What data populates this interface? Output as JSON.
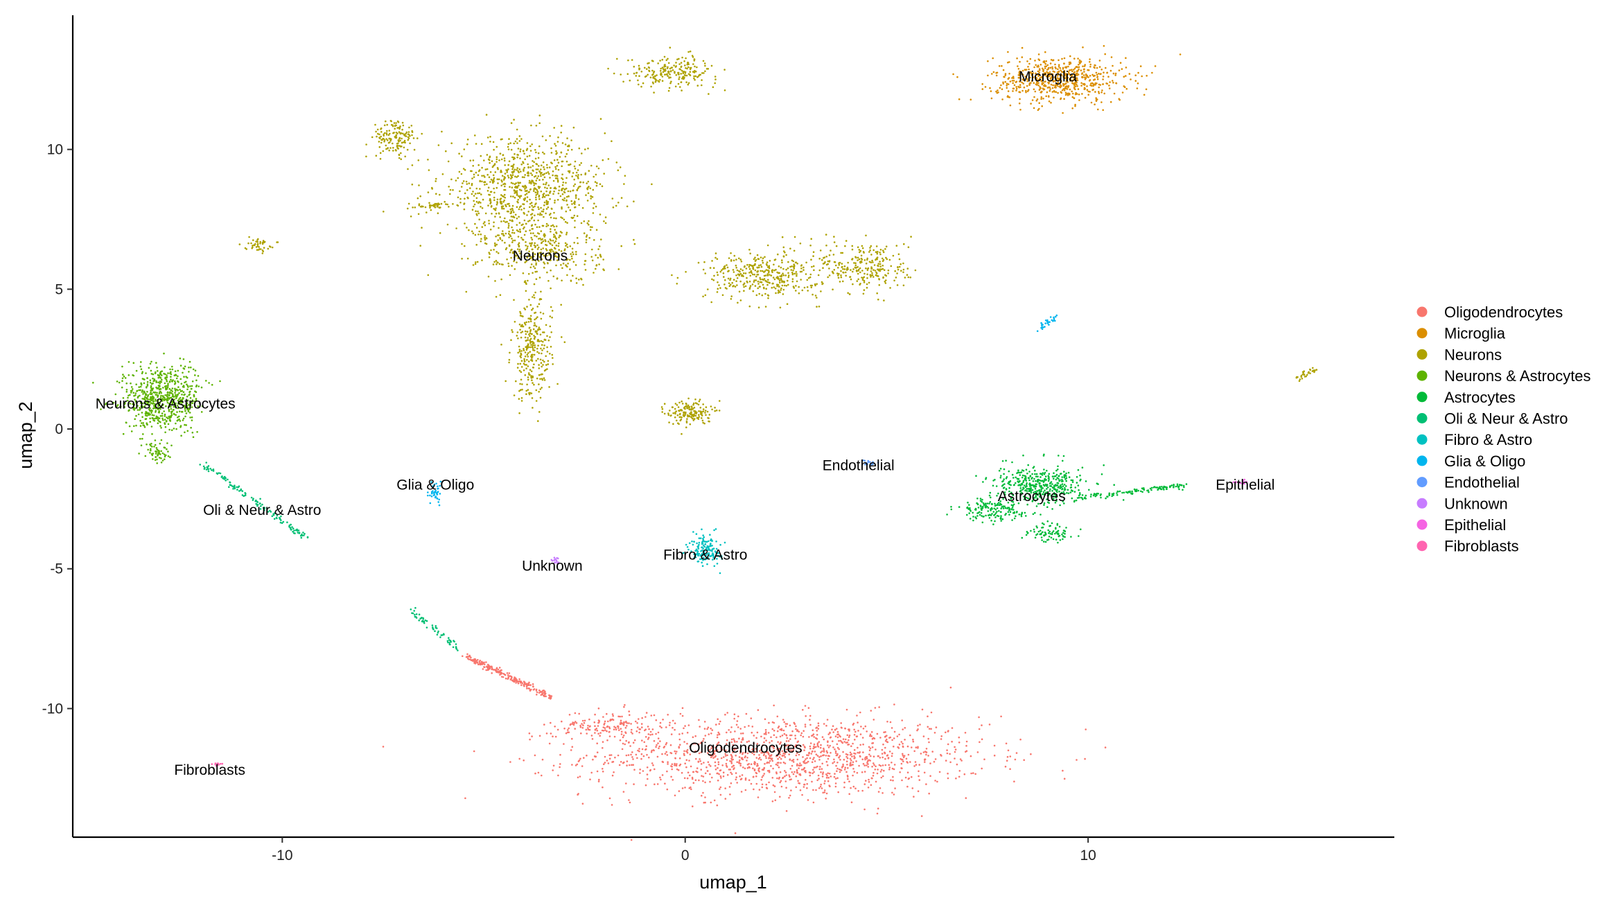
{
  "chart_data": {
    "type": "scatter",
    "xlabel": "umap_1",
    "ylabel": "umap_2",
    "xlim": [
      -15.2,
      17.6
    ],
    "ylim": [
      -14.6,
      14.8
    ],
    "xticks": [
      -10,
      0,
      10
    ],
    "yticks": [
      -10,
      -5,
      0,
      5,
      10
    ],
    "grid": false,
    "legend_position": "right",
    "series": [
      {
        "name": "Oligodendrocytes",
        "color": "#F8766D",
        "clusters": [
          {
            "kind": "blob",
            "cx": 2.5,
            "cy": -11.7,
            "rx": 4.5,
            "ry": 1.3,
            "n": 1400
          },
          {
            "kind": "blob",
            "cx": -1.9,
            "cy": -10.6,
            "rx": 1.2,
            "ry": 0.5,
            "n": 150
          },
          {
            "kind": "line",
            "x0": -5.5,
            "y0": -8.1,
            "x1": -3.3,
            "y1": -9.6,
            "n": 220
          }
        ],
        "label": {
          "text": "Oligodendrocytes",
          "x": 1.5,
          "y": -11.4
        }
      },
      {
        "name": "Microglia",
        "color": "#DB8E00",
        "clusters": [
          {
            "kind": "blob",
            "cx": 9.3,
            "cy": 12.5,
            "rx": 1.5,
            "ry": 0.75,
            "n": 650
          }
        ],
        "label": {
          "text": "Microglia",
          "x": 9.0,
          "y": 12.6
        }
      },
      {
        "name": "Neurons",
        "color": "#AEA200",
        "clusters": [
          {
            "kind": "blob",
            "cx": -4.0,
            "cy": 8.6,
            "rx": 1.9,
            "ry": 1.6,
            "n": 900
          },
          {
            "kind": "blob",
            "cx": -3.6,
            "cy": 6.4,
            "rx": 1.4,
            "ry": 1.1,
            "n": 350
          },
          {
            "kind": "blob",
            "cx": -3.8,
            "cy": 2.8,
            "rx": 0.45,
            "ry": 1.6,
            "n": 300
          },
          {
            "kind": "blob",
            "cx": -7.2,
            "cy": 10.4,
            "rx": 0.5,
            "ry": 0.6,
            "n": 150
          },
          {
            "kind": "blob",
            "cx": -0.3,
            "cy": 12.8,
            "rx": 1.0,
            "ry": 0.5,
            "n": 220
          },
          {
            "kind": "blob",
            "cx": 1.9,
            "cy": 5.5,
            "rx": 1.3,
            "ry": 0.75,
            "n": 380
          },
          {
            "kind": "blob",
            "cx": 4.5,
            "cy": 5.8,
            "rx": 1.0,
            "ry": 0.9,
            "n": 260
          },
          {
            "kind": "blob",
            "cx": 0.1,
            "cy": 0.6,
            "rx": 0.5,
            "ry": 0.4,
            "n": 160
          },
          {
            "kind": "blob",
            "cx": -10.6,
            "cy": 6.6,
            "rx": 0.3,
            "ry": 0.2,
            "n": 45
          },
          {
            "kind": "blob",
            "cx": -6.3,
            "cy": 8.0,
            "rx": 0.5,
            "ry": 0.1,
            "n": 40
          },
          {
            "kind": "line",
            "x0": 15.2,
            "y0": 1.8,
            "x1": 15.7,
            "y1": 2.2,
            "n": 30
          }
        ],
        "label": {
          "text": "Neurons",
          "x": -3.6,
          "y": 6.2
        }
      },
      {
        "name": "Neurons & Astrocytes",
        "color": "#5EB300",
        "clusters": [
          {
            "kind": "blob",
            "cx": -13.0,
            "cy": 1.1,
            "rx": 0.9,
            "ry": 1.1,
            "n": 650
          },
          {
            "kind": "blob",
            "cx": -13.1,
            "cy": -0.8,
            "rx": 0.3,
            "ry": 0.35,
            "n": 60
          }
        ],
        "label": {
          "text": "Neurons & Astrocytes",
          "x": -12.9,
          "y": 0.9
        }
      },
      {
        "name": "Astrocytes",
        "color": "#00BA38",
        "clusters": [
          {
            "kind": "blob",
            "cx": 8.8,
            "cy": -2.0,
            "rx": 1.0,
            "ry": 0.6,
            "n": 420
          },
          {
            "kind": "blob",
            "cx": 7.6,
            "cy": -2.9,
            "rx": 0.7,
            "ry": 0.35,
            "n": 160
          },
          {
            "kind": "blob",
            "cx": 9.0,
            "cy": -3.7,
            "rx": 0.5,
            "ry": 0.3,
            "n": 80
          },
          {
            "kind": "line",
            "x0": 9.6,
            "y0": -2.5,
            "x1": 12.5,
            "y1": -2.0,
            "n": 120
          }
        ],
        "label": {
          "text": "Astrocytes",
          "x": 8.6,
          "y": -2.4
        }
      },
      {
        "name": "Oli & Neur & Astro",
        "color": "#00BF74",
        "clusters": [
          {
            "kind": "line",
            "x0": -12.0,
            "y0": -1.2,
            "x1": -9.4,
            "y1": -3.9,
            "n": 130
          },
          {
            "kind": "line",
            "x0": -6.8,
            "y0": -6.5,
            "x1": -5.6,
            "y1": -7.9,
            "n": 60
          }
        ],
        "label": {
          "text": "Oli & Neur & Astro",
          "x": -10.5,
          "y": -2.9
        }
      },
      {
        "name": "Fibro & Astro",
        "color": "#00C1C1",
        "clusters": [
          {
            "kind": "blob",
            "cx": 0.5,
            "cy": -4.3,
            "rx": 0.35,
            "ry": 0.5,
            "n": 150
          }
        ],
        "label": {
          "text": "Fibro & Astro",
          "x": 0.5,
          "y": -4.5
        }
      },
      {
        "name": "Glia & Oligo",
        "color": "#00B5EE",
        "clusters": [
          {
            "kind": "blob",
            "cx": -6.2,
            "cy": -2.3,
            "rx": 0.15,
            "ry": 0.35,
            "n": 40
          },
          {
            "kind": "line",
            "x0": 8.8,
            "y0": 3.6,
            "x1": 9.2,
            "y1": 4.0,
            "n": 30
          }
        ],
        "label": {
          "text": "Glia & Oligo",
          "x": -6.2,
          "y": -2.0
        }
      },
      {
        "name": "Endothelial",
        "color": "#619CFF",
        "clusters": [
          {
            "kind": "blob",
            "cx": 4.6,
            "cy": -1.2,
            "rx": 0.15,
            "ry": 0.12,
            "n": 15
          }
        ],
        "label": {
          "text": "Endothelial",
          "x": 4.3,
          "y": -1.3
        }
      },
      {
        "name": "Unknown",
        "color": "#C77CFF",
        "clusters": [
          {
            "kind": "blob",
            "cx": -3.2,
            "cy": -4.7,
            "rx": 0.12,
            "ry": 0.15,
            "n": 15
          }
        ],
        "label": {
          "text": "Unknown",
          "x": -3.3,
          "y": -4.9
        }
      },
      {
        "name": "Epithelial",
        "color": "#F564E3",
        "clusters": [
          {
            "kind": "blob",
            "cx": 13.8,
            "cy": -1.9,
            "rx": 0.2,
            "ry": 0.1,
            "n": 12
          }
        ],
        "label": {
          "text": "Epithelial",
          "x": 13.9,
          "y": -2.0
        }
      },
      {
        "name": "Fibroblasts",
        "color": "#FF64B0",
        "clusters": [
          {
            "kind": "blob",
            "cx": -11.6,
            "cy": -12.0,
            "rx": 0.2,
            "ry": 0.1,
            "n": 10
          }
        ],
        "label": {
          "text": "Fibroblasts",
          "x": -11.8,
          "y": -12.2
        }
      }
    ]
  }
}
